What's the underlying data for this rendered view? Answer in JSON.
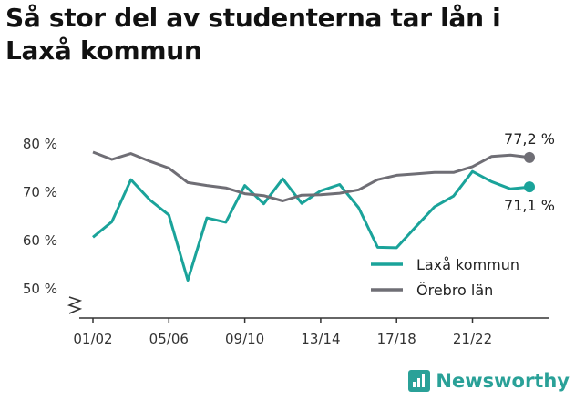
{
  "title": "Så stor del av studenterna tar lån i Laxå kommun",
  "brand": {
    "name": "Newsworthy",
    "icon": "bar-chart-logo-icon",
    "color": "#2aa198"
  },
  "chart_data": {
    "type": "line",
    "title": "Så stor del av studenterna tar lån i Laxå kommun",
    "xlabel": "",
    "ylabel": "",
    "ylim": [
      49,
      82
    ],
    "y_ticks": [
      50,
      60,
      70,
      80
    ],
    "y_tick_labels": [
      "50 %",
      "60 %",
      "70 %",
      "80 %"
    ],
    "x_tick_labels": [
      "01/02",
      "05/06",
      "09/10",
      "13/14",
      "17/18",
      "21/22"
    ],
    "x_tick_indices": [
      0,
      4,
      8,
      12,
      16,
      20
    ],
    "axis_break": true,
    "grid": false,
    "legend_position": "bottom-right",
    "series": [
      {
        "name": "Laxå kommun",
        "color": "#1aa39a",
        "end_label": "71,1 %",
        "values": [
          60.7,
          63.9,
          72.6,
          68.4,
          65.3,
          51.8,
          64.7,
          63.8,
          71.4,
          67.6,
          72.8,
          67.7,
          70.3,
          71.6,
          66.8,
          58.6,
          58.5,
          62.8,
          67.0,
          69.2,
          74.3,
          72.2,
          70.7,
          71.1
        ]
      },
      {
        "name": "Örebro län",
        "color": "#6f6e75",
        "end_label": "77,2 %",
        "values": [
          78.3,
          76.8,
          78.0,
          76.4,
          75.0,
          72.0,
          71.4,
          70.9,
          69.7,
          69.3,
          68.2,
          69.4,
          69.5,
          69.8,
          70.5,
          72.6,
          73.5,
          73.8,
          74.1,
          74.1,
          75.3,
          77.4,
          77.7,
          77.2
        ]
      }
    ]
  }
}
